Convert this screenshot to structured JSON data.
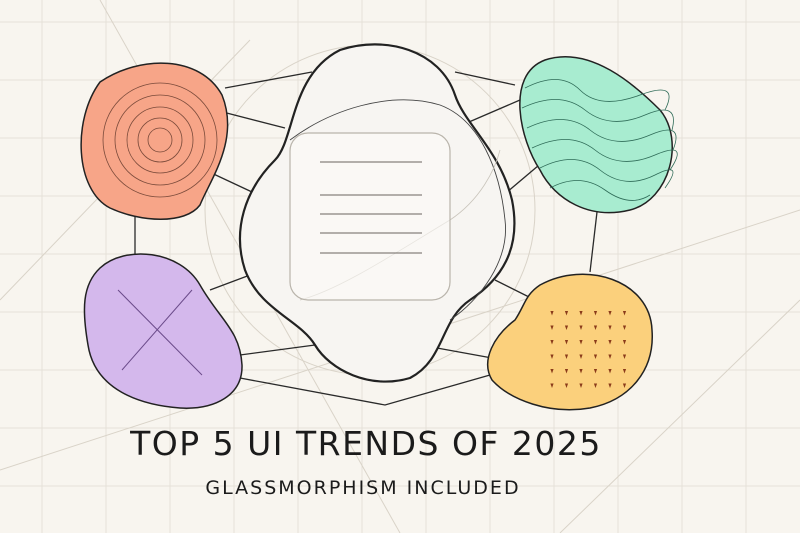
{
  "title": "TOP 5 UI TRENDS OF 2025",
  "subtitle": "GLASSMORPHISM INCLUDED",
  "colors": {
    "background": "#f8f5ef",
    "grid": "#e6e1d8",
    "stroke": "#222222",
    "coral": "#f7a588",
    "mint": "#a8ecd0",
    "lavender": "#d4b8ec",
    "yellow": "#fbd07c",
    "glass": "#f7f5f2"
  },
  "shapes": [
    {
      "name": "coral-blob",
      "pattern": "concentric-circles"
    },
    {
      "name": "mint-blob",
      "pattern": "wavy-lines"
    },
    {
      "name": "lavender-blob",
      "pattern": "cross"
    },
    {
      "name": "yellow-blob",
      "pattern": "dot-grid"
    },
    {
      "name": "glass-blob",
      "pattern": "card-with-lines"
    }
  ]
}
